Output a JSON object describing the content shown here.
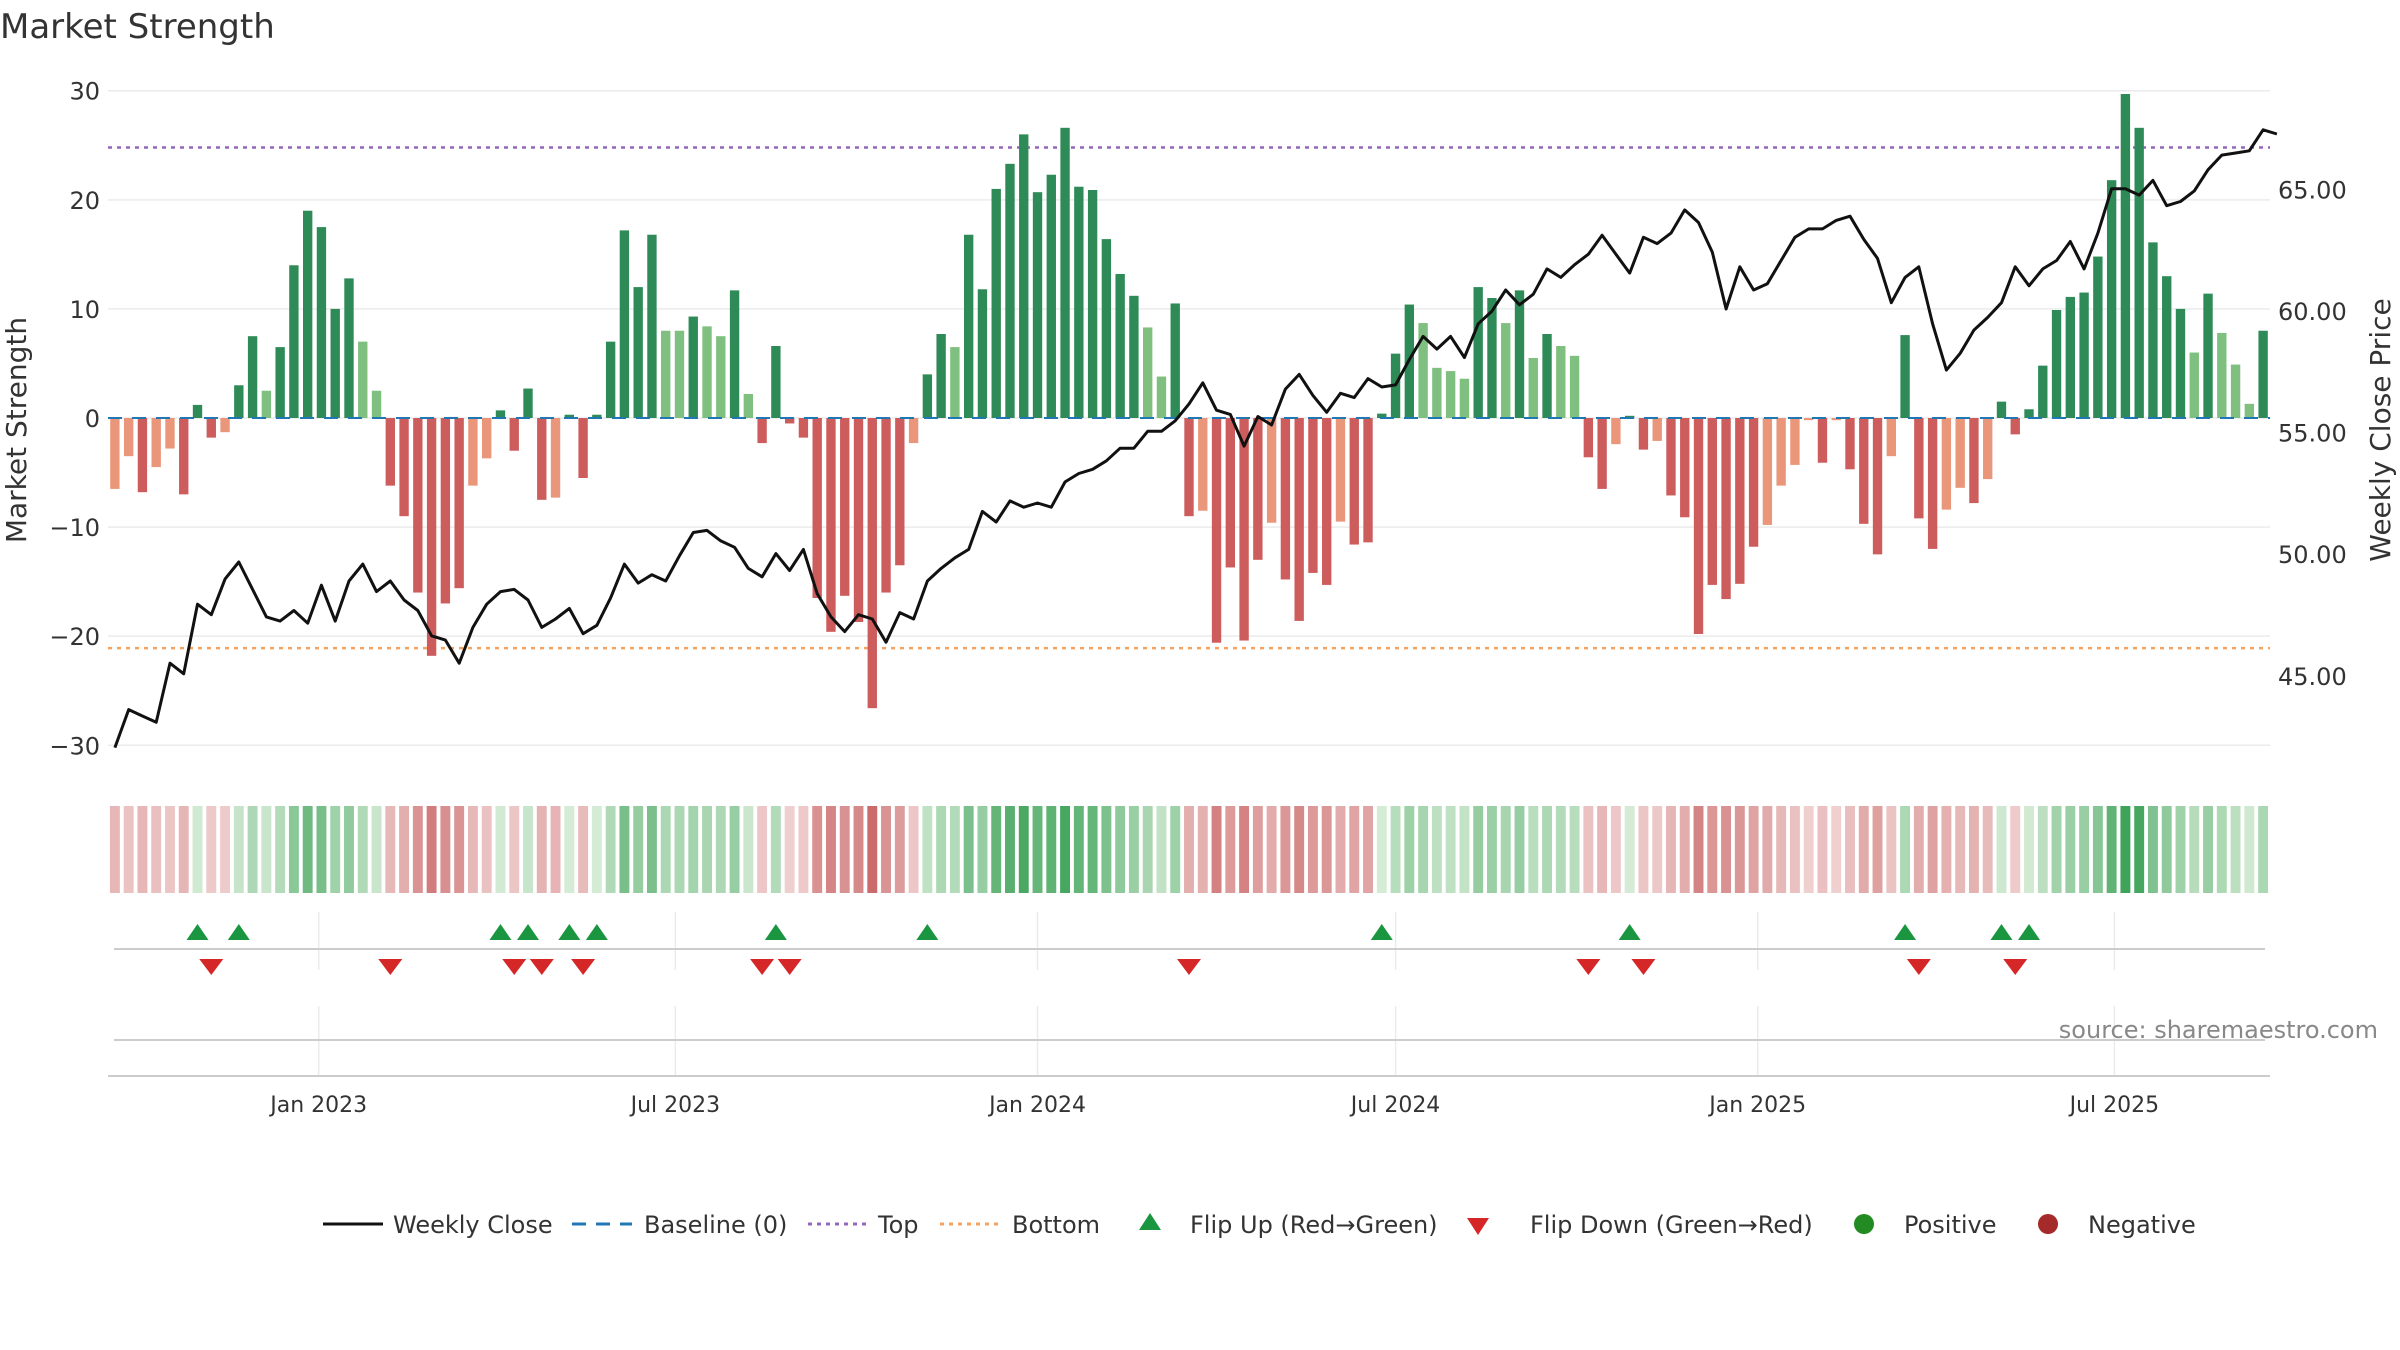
{
  "chart_data": {
    "type": "bar",
    "title": "Market Strength",
    "source": "source: sharemaestro.com",
    "ylabel_left": "Market Strength",
    "ylabel_right": "Weekly Close Price",
    "ylim_left": [
      -33,
      33
    ],
    "ylim_right": [
      40.8,
      70.4
    ],
    "yticks_left": [
      30,
      20,
      10,
      0,
      -10,
      -20,
      -30
    ],
    "ytick_labels_left": [
      "30",
      "20",
      "10",
      "0",
      "−10",
      "−20",
      "−30"
    ],
    "yticks_right": [
      45,
      50,
      55,
      60,
      65
    ],
    "ytick_labels_right": [
      "45.00",
      "50.00",
      "55.00",
      "60.00",
      "65.00"
    ],
    "top_level": 24.8,
    "bottom_level": -21.1,
    "x_index_range": [
      0,
      157
    ],
    "x_ticks": [
      {
        "label": "Jan 2023",
        "index": 14.8
      },
      {
        "label": "Jul 2023",
        "index": 40.7
      },
      {
        "label": "Jan 2024",
        "index": 67.0
      },
      {
        "label": "Jul 2024",
        "index": 93.0
      },
      {
        "label": "Jan 2025",
        "index": 119.3
      },
      {
        "label": "Jul 2025",
        "index": 145.2
      }
    ],
    "strength": [
      -6.5,
      -3.5,
      -6.8,
      -4.5,
      -2.8,
      -7,
      1.2,
      -1.8,
      -1.3,
      3,
      7.5,
      2.5,
      6.5,
      14,
      19,
      17.5,
      10,
      12.8,
      7,
      2.5,
      -6.2,
      -9,
      -16,
      -21.8,
      -17,
      -15.6,
      -6.2,
      -3.7,
      0.7,
      -3,
      2.7,
      -7.5,
      -7.3,
      0.3,
      -5.5,
      0.3,
      7,
      17.2,
      12,
      16.8,
      8,
      8,
      9.3,
      8.4,
      7.5,
      11.7,
      2.2,
      -2.3,
      6.6,
      -0.5,
      -1.8,
      -16.5,
      -19.6,
      -16.3,
      -18.7,
      -26.6,
      -16,
      -13.5,
      -2.3,
      4,
      7.7,
      6.5,
      16.8,
      11.8,
      21,
      23.3,
      26,
      20.7,
      22.3,
      26.6,
      21.2,
      20.9,
      16.4,
      13.2,
      11.2,
      8.3,
      3.8,
      10.5,
      -9,
      -8.5,
      -20.6,
      -13.7,
      -20.4,
      -13,
      -9.6,
      -14.8,
      -18.6,
      -14.2,
      -15.3,
      -9.5,
      -11.6,
      -11.4,
      0.4,
      5.9,
      10.4,
      8.7,
      4.6,
      4.3,
      3.6,
      12,
      11,
      8.7,
      11.7,
      5.5,
      7.7,
      6.6,
      5.7,
      -3.6,
      -6.5,
      -2.4,
      0.2,
      -2.9,
      -2.1,
      -7.1,
      -9.1,
      -19.8,
      -15.3,
      -16.6,
      -15.2,
      -11.8,
      -9.8,
      -6.2,
      -4.3,
      -0.2,
      -4.1,
      -0.2,
      -4.7,
      -9.7,
      -12.5,
      -3.5,
      7.6,
      -9.2,
      -12,
      -8.4,
      -6.4,
      -7.8,
      -5.6,
      1.5,
      -1.5,
      0.8,
      4.8,
      9.9,
      11.1,
      11.5,
      14.8,
      21.8,
      29.7,
      26.6,
      16.1,
      13,
      10,
      6,
      11.4,
      7.8,
      4.9,
      1.3,
      8
    ]
  },
  "legend": {
    "weekly_close": "Weekly Close",
    "baseline": "Baseline (0)",
    "top": "Top",
    "bottom": "Bottom",
    "flip_up": "Flip Up (Red→Green)",
    "flip_down": "Flip Down (Green→Red)",
    "positive": "Positive",
    "negative": "Negative"
  },
  "colors": {
    "green_dark": "#2e8b57",
    "green_light": "#7fbf7f",
    "red_dark": "#cd5c5c",
    "red_light": "#e9967a",
    "price_line": "#111111",
    "top_line": "#9467bd",
    "bottom_line": "#f4a460",
    "baseline": "#1f77b4",
    "flip_up": "#1a9641",
    "flip_down": "#d62728",
    "positive_dot": "#228b22",
    "negative_dot": "#a52a2a"
  }
}
